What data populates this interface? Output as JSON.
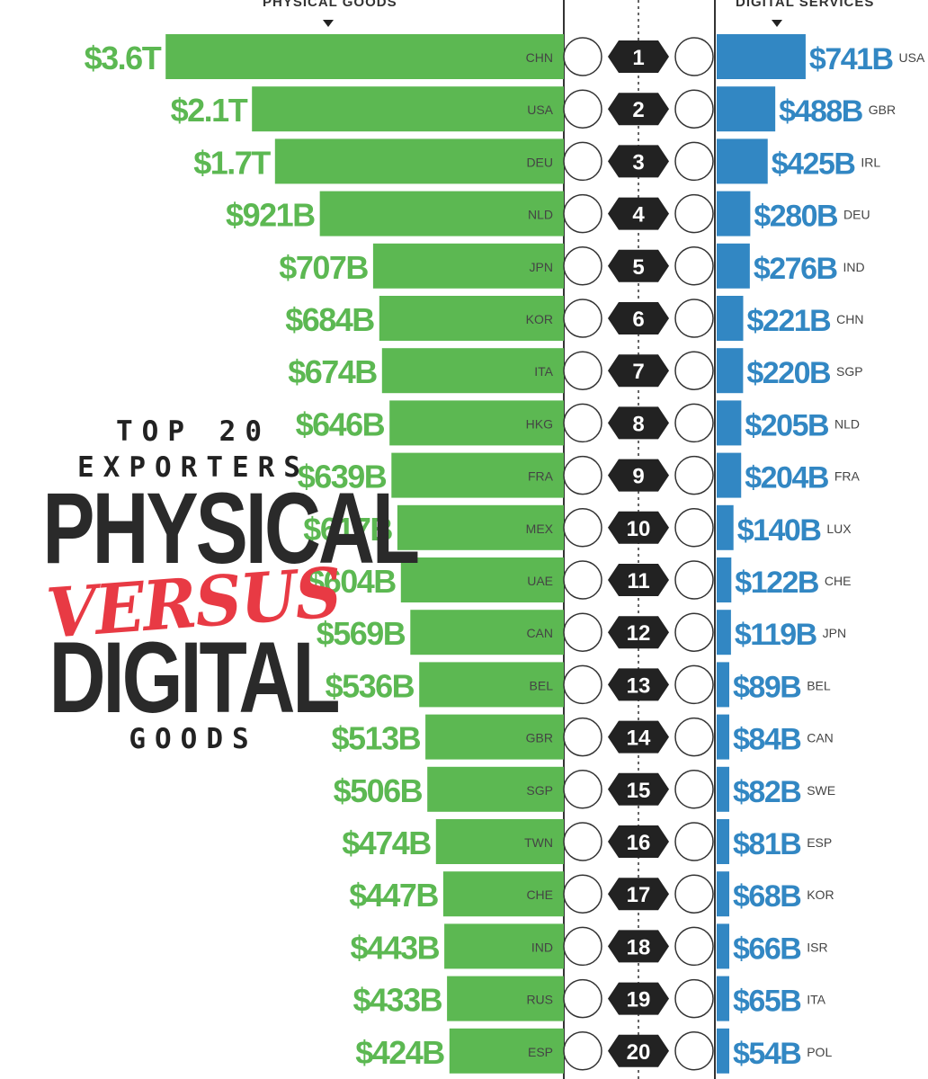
{
  "headers": {
    "left": "PHYSICAL GOODS",
    "right": "DIGITAL SERVICES"
  },
  "title": {
    "line1": "TOP 20",
    "line2": "EXPORTERS",
    "line3": "PHYSICAL",
    "line4": "VERSUS",
    "line5": "DIGITAL",
    "line6": "GOODS"
  },
  "colors": {
    "physical": "#5cb852",
    "digital": "#3287c3",
    "ranks": "#222222",
    "versus": "#e83a44"
  },
  "chart_data": {
    "type": "bar",
    "series": [
      {
        "name": "PHYSICAL GOODS",
        "unit": "billion USD",
        "ranks": [
          1,
          2,
          3,
          4,
          5,
          6,
          7,
          8,
          9,
          10,
          11,
          12,
          13,
          14,
          15,
          16,
          17,
          18,
          19,
          20
        ],
        "countries": [
          "CHN",
          "USA",
          "DEU",
          "NLD",
          "JPN",
          "KOR",
          "ITA",
          "HKG",
          "FRA",
          "MEX",
          "UAE",
          "CAN",
          "BEL",
          "GBR",
          "SGP",
          "TWN",
          "CHE",
          "IND",
          "RUS",
          "ESP"
        ],
        "values": [
          3600,
          2100,
          1700,
          921,
          707,
          684,
          674,
          646,
          639,
          617,
          604,
          569,
          536,
          513,
          506,
          474,
          447,
          443,
          433,
          424
        ],
        "labels": [
          "$3.6T",
          "$2.1T",
          "$1.7T",
          "$921B",
          "$707B",
          "$684B",
          "$674B",
          "$646B",
          "$639B",
          "$617B",
          "$604B",
          "$569B",
          "$536B",
          "$513B",
          "$506B",
          "$474B",
          "$447B",
          "$443B",
          "$433B",
          "$424B"
        ]
      },
      {
        "name": "DIGITAL SERVICES",
        "unit": "billion USD",
        "ranks": [
          1,
          2,
          3,
          4,
          5,
          6,
          7,
          8,
          9,
          10,
          11,
          12,
          13,
          14,
          15,
          16,
          17,
          18,
          19,
          20
        ],
        "countries": [
          "USA",
          "GBR",
          "IRL",
          "DEU",
          "IND",
          "CHN",
          "SGP",
          "NLD",
          "FRA",
          "LUX",
          "CHE",
          "JPN",
          "BEL",
          "CAN",
          "SWE",
          "ESP",
          "KOR",
          "ISR",
          "ITA",
          "POL"
        ],
        "values": [
          741,
          488,
          425,
          280,
          276,
          221,
          220,
          205,
          204,
          140,
          122,
          119,
          89,
          84,
          82,
          81,
          68,
          66,
          65,
          54
        ],
        "labels": [
          "$741B",
          "$488B",
          "$425B",
          "$280B",
          "$276B",
          "$221B",
          "$220B",
          "$205B",
          "$204B",
          "$140B",
          "$122B",
          "$119B",
          "$89B",
          "$84B",
          "$82B",
          "$81B",
          "$68B",
          "$66B",
          "$65B",
          "$54B"
        ]
      }
    ]
  }
}
